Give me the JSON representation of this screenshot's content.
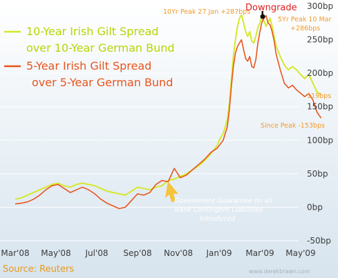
{
  "chart_data": {
    "type": "line",
    "x_labels": [
      "Mar'08",
      "May'08",
      "Jul'08",
      "Sep'08",
      "Nov'08",
      "Jan'09",
      "Mar'09",
      "May'09"
    ],
    "y_ticks": [
      "300bp",
      "250bp",
      "200bp",
      "150bp",
      "100bp",
      "50bp",
      "0bp",
      "-50bp"
    ],
    "ylim": [
      -50,
      300
    ],
    "grid": true,
    "legend_position": "top-left",
    "series": [
      {
        "name": "10-Year Irish Gilt Spread over 10-Year German Bund",
        "name_line1": "10-Year Irish Gilt Spread",
        "name_line2": "over 10-Year German Bund",
        "color": "#d6e82a",
        "points": [
          [
            0,
            12
          ],
          [
            0.15,
            14
          ],
          [
            0.3,
            18
          ],
          [
            0.45,
            22
          ],
          [
            0.6,
            26
          ],
          [
            0.75,
            30
          ],
          [
            0.9,
            34
          ],
          [
            1.05,
            36
          ],
          [
            1.2,
            32
          ],
          [
            1.35,
            30
          ],
          [
            1.5,
            34
          ],
          [
            1.65,
            36
          ],
          [
            1.8,
            34
          ],
          [
            1.95,
            32
          ],
          [
            2.1,
            28
          ],
          [
            2.25,
            24
          ],
          [
            2.4,
            22
          ],
          [
            2.55,
            20
          ],
          [
            2.7,
            18
          ],
          [
            2.85,
            24
          ],
          [
            3.0,
            30
          ],
          [
            3.15,
            28
          ],
          [
            3.3,
            26
          ],
          [
            3.45,
            30
          ],
          [
            3.6,
            32
          ],
          [
            3.75,
            40
          ],
          [
            3.9,
            42
          ],
          [
            4.05,
            46
          ],
          [
            4.2,
            50
          ],
          [
            4.35,
            56
          ],
          [
            4.5,
            62
          ],
          [
            4.65,
            70
          ],
          [
            4.8,
            80
          ],
          [
            4.95,
            92
          ],
          [
            5.0,
            100
          ],
          [
            5.1,
            110
          ],
          [
            5.2,
            130
          ],
          [
            5.25,
            155
          ],
          [
            5.3,
            190
          ],
          [
            5.35,
            225
          ],
          [
            5.4,
            250
          ],
          [
            5.45,
            270
          ],
          [
            5.5,
            282
          ],
          [
            5.55,
            287
          ],
          [
            5.6,
            275
          ],
          [
            5.65,
            262
          ],
          [
            5.7,
            255
          ],
          [
            5.75,
            262
          ],
          [
            5.8,
            248
          ],
          [
            5.85,
            245
          ],
          [
            5.9,
            255
          ],
          [
            5.95,
            268
          ],
          [
            6.0,
            275
          ],
          [
            6.05,
            284
          ],
          [
            6.1,
            278
          ],
          [
            6.15,
            270
          ],
          [
            6.2,
            276
          ],
          [
            6.25,
            282
          ],
          [
            6.3,
            270
          ],
          [
            6.35,
            255
          ],
          [
            6.4,
            240
          ],
          [
            6.5,
            225
          ],
          [
            6.6,
            212
          ],
          [
            6.7,
            205
          ],
          [
            6.8,
            210
          ],
          [
            6.9,
            205
          ],
          [
            7.0,
            198
          ],
          [
            7.1,
            192
          ],
          [
            7.2,
            198
          ],
          [
            7.3,
            185
          ],
          [
            7.4,
            172
          ],
          [
            7.5,
            168
          ]
        ]
      },
      {
        "name": "5-Year Irish Gilt Spread over 5-Year German Bund",
        "name_line1": "5-Year Irish Gilt Spread",
        "name_line2": "over 5-Year German Bund",
        "color": "#e8541c",
        "points": [
          [
            0,
            5
          ],
          [
            0.15,
            6
          ],
          [
            0.3,
            8
          ],
          [
            0.45,
            12
          ],
          [
            0.6,
            18
          ],
          [
            0.75,
            26
          ],
          [
            0.9,
            32
          ],
          [
            1.05,
            34
          ],
          [
            1.2,
            28
          ],
          [
            1.35,
            22
          ],
          [
            1.5,
            26
          ],
          [
            1.65,
            30
          ],
          [
            1.8,
            26
          ],
          [
            1.95,
            20
          ],
          [
            2.1,
            12
          ],
          [
            2.25,
            6
          ],
          [
            2.4,
            2
          ],
          [
            2.55,
            -2
          ],
          [
            2.7,
            0
          ],
          [
            2.85,
            10
          ],
          [
            3.0,
            20
          ],
          [
            3.15,
            18
          ],
          [
            3.3,
            22
          ],
          [
            3.45,
            34
          ],
          [
            3.6,
            40
          ],
          [
            3.75,
            38
          ],
          [
            3.9,
            58
          ],
          [
            4.05,
            44
          ],
          [
            4.2,
            48
          ],
          [
            4.35,
            56
          ],
          [
            4.5,
            64
          ],
          [
            4.65,
            72
          ],
          [
            4.8,
            82
          ],
          [
            4.95,
            88
          ],
          [
            5.0,
            92
          ],
          [
            5.1,
            100
          ],
          [
            5.2,
            120
          ],
          [
            5.25,
            145
          ],
          [
            5.3,
            180
          ],
          [
            5.35,
            210
          ],
          [
            5.4,
            230
          ],
          [
            5.45,
            240
          ],
          [
            5.5,
            245
          ],
          [
            5.55,
            250
          ],
          [
            5.6,
            235
          ],
          [
            5.65,
            222
          ],
          [
            5.7,
            218
          ],
          [
            5.75,
            225
          ],
          [
            5.8,
            210
          ],
          [
            5.85,
            208
          ],
          [
            5.9,
            220
          ],
          [
            5.95,
            245
          ],
          [
            6.0,
            262
          ],
          [
            6.05,
            276
          ],
          [
            6.1,
            282
          ],
          [
            6.15,
            286
          ],
          [
            6.2,
            275
          ],
          [
            6.25,
            272
          ],
          [
            6.3,
            262
          ],
          [
            6.35,
            248
          ],
          [
            6.4,
            228
          ],
          [
            6.5,
            205
          ],
          [
            6.6,
            185
          ],
          [
            6.7,
            178
          ],
          [
            6.8,
            182
          ],
          [
            6.9,
            175
          ],
          [
            7.0,
            170
          ],
          [
            7.1,
            165
          ],
          [
            7.2,
            170
          ],
          [
            7.3,
            160
          ],
          [
            7.4,
            142
          ],
          [
            7.5,
            133
          ]
        ]
      }
    ],
    "annotations": {
      "downgrade": "Downgrade",
      "peak10_line1": "10Yr Peak 27 Jan +287bps",
      "peak5_line1": "5Yr Peak 10 Mar",
      "peak5_line2": "+286bps",
      "last10": "119bps",
      "since_peak": "Since Peak -153bps",
      "guarantee_line1": "Government Guarantee on all",
      "guarantee_line2": "Bank Contingent Liabilities",
      "guarantee_line3": "Introduced",
      "source": "Source: Reuters",
      "watermark": "www.derekbrawn.com"
    },
    "colors": {
      "background_top": "#ffffff",
      "background_bottom": "#d7e4ee",
      "grid": "#ffffff",
      "peak_orange": "#f39a2a",
      "downgrade_red": "#e01e1e",
      "guarantee_arrow": "#f6c33a"
    }
  }
}
